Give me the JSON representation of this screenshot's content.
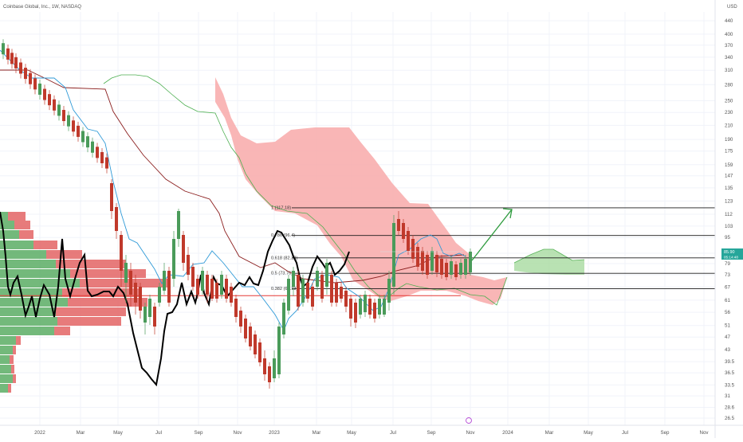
{
  "header": {
    "symbol_title": "Coinbase Global, Inc., 1W, NASDAQ",
    "currency": "USD"
  },
  "chart_data": {
    "type": "line",
    "title": "Coinbase Global, Inc., 1W, NASDAQ",
    "price_scale": "log",
    "ylim": [
      26,
      450
    ],
    "y_ticks": [
      440,
      400,
      370,
      340,
      310,
      280,
      250,
      230,
      210,
      190,
      175,
      159,
      147,
      135,
      123,
      112,
      103,
      95,
      85,
      79,
      73,
      67,
      61,
      56,
      51,
      47,
      43,
      39.5,
      36.5,
      33.5,
      31,
      28.6,
      26.5
    ],
    "x_ticks": [
      "2022",
      "Mar",
      "May",
      "Jul",
      "Sep",
      "Nov",
      "2023",
      "Mar",
      "May",
      "Jul",
      "Sep",
      "Nov",
      "2024",
      "Mar",
      "May",
      "Jul",
      "Sep",
      "Nov"
    ],
    "fib_levels": [
      {
        "label": "1 (117.18)",
        "value": 117.18
      },
      {
        "label": "0.786 (96.4)",
        "value": 96.4
      },
      {
        "label": "0.618 (82.28)",
        "value": 82.28
      },
      {
        "label": "0.5 (73.76)",
        "value": 73.76
      },
      {
        "label": "0.382 (66.13)",
        "value": 66.13
      }
    ],
    "last_price_labels": [
      "85.90",
      "05:14:48"
    ],
    "horizontal_line_value": 63,
    "colors": {
      "up_candle": "#4a9b5a",
      "down_candle": "#c0392b",
      "kumo_bear": "#f8a9a9",
      "kumo_bull": "#a8dba0",
      "tenkan": "#2f9ad7",
      "kijun": "#8b1e1e",
      "chikou": "#000000",
      "lagging_band": "#5ab45a",
      "vp_green": "#5aad64",
      "vp_red": "#e36464",
      "arrow": "#2e9b3e",
      "price_tag": "#26a69a"
    }
  }
}
